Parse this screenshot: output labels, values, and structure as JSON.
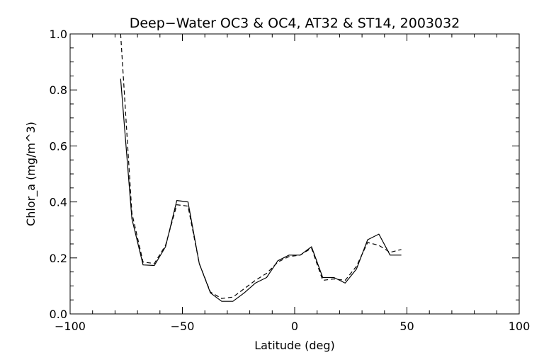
{
  "chart_data": {
    "type": "line",
    "title": "Deep−Water OC3 & OC4, AT32 & ST14, 2003032",
    "xlabel": "Latitude (deg)",
    "ylabel": "Chlor_a (mg/m^3)",
    "xlim": [
      -100,
      100
    ],
    "ylim": [
      0.0,
      1.0
    ],
    "x_ticks": [
      -100,
      -50,
      0,
      50,
      100
    ],
    "x_tick_labels": [
      "−100",
      "−50",
      "0",
      "50",
      "100"
    ],
    "y_ticks": [
      0.0,
      0.2,
      0.4,
      0.6,
      0.8,
      1.0
    ],
    "y_tick_labels": [
      "0.0",
      "0.2",
      "0.4",
      "0.6",
      "0.8",
      "1.0"
    ],
    "grid": false,
    "series": [
      {
        "style": "solid",
        "color": "#000000",
        "x": [
          -77.5,
          -72.5,
          -67.5,
          -62.5,
          -57.5,
          -52.5,
          -47.5,
          -42.5,
          -37.5,
          -32.5,
          -27.5,
          -22.5,
          -17.5,
          -12.5,
          -7.5,
          -2.5,
          2.5,
          7.5,
          12.5,
          17.5,
          22.5,
          27.5,
          32.5,
          37.5,
          42.5,
          47.5
        ],
        "y": [
          0.84,
          0.34,
          0.175,
          0.173,
          0.24,
          0.405,
          0.4,
          0.18,
          0.075,
          0.045,
          0.045,
          0.075,
          0.11,
          0.13,
          0.19,
          0.21,
          0.21,
          0.24,
          0.13,
          0.13,
          0.11,
          0.16,
          0.265,
          0.285,
          0.21,
          0.21
        ]
      },
      {
        "style": "dashed",
        "color": "#000000",
        "x": [
          -77.5,
          -72.5,
          -67.5,
          -62.5,
          -57.5,
          -52.5,
          -47.5,
          -42.5,
          -37.5,
          -32.5,
          -27.5,
          -22.5,
          -17.5,
          -12.5,
          -7.5,
          -2.5,
          2.5,
          7.5,
          12.5,
          17.5,
          22.5,
          27.5,
          32.5,
          37.5,
          42.5,
          47.5
        ],
        "y": [
          1.0,
          0.36,
          0.185,
          0.18,
          0.245,
          0.39,
          0.385,
          0.18,
          0.078,
          0.055,
          0.06,
          0.09,
          0.12,
          0.145,
          0.185,
          0.205,
          0.21,
          0.235,
          0.12,
          0.125,
          0.12,
          0.17,
          0.255,
          0.245,
          0.22,
          0.23
        ]
      }
    ]
  }
}
